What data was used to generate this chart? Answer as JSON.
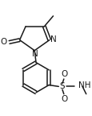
{
  "bg_color": "#ffffff",
  "line_color": "#1a1a1a",
  "lw": 1.1,
  "figsize": [
    1.16,
    1.44
  ],
  "dpi": 100,
  "xlim": [
    0,
    116
  ],
  "ylim": [
    0,
    144
  ]
}
